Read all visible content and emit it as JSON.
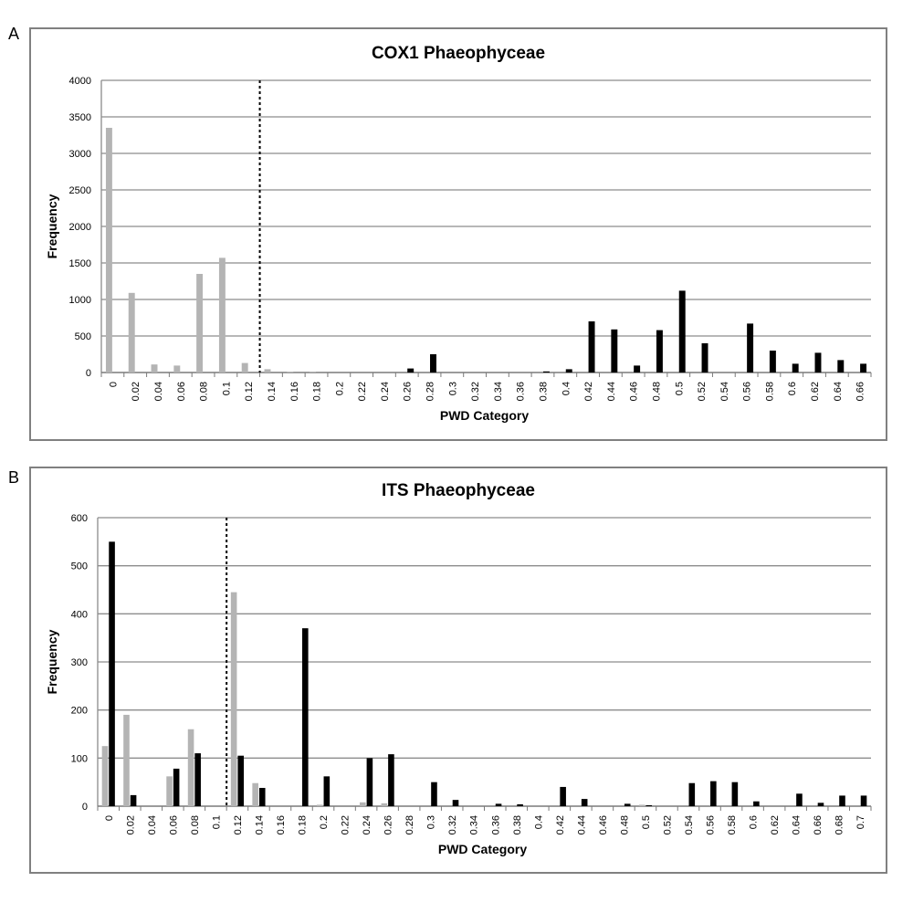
{
  "panels": [
    {
      "letter": "A"
    },
    {
      "letter": "B"
    }
  ],
  "colors": {
    "gray": "#b4b4b4",
    "black": "#000000",
    "grid": "#8c8c8c",
    "frame": "#808080"
  },
  "chart_data": [
    {
      "type": "bar",
      "title": "COX1 Phaeophyceae",
      "xlabel": "PWD Category",
      "ylabel": "Frequency",
      "ylim": [
        0,
        4000
      ],
      "yticks": [
        "0",
        "500",
        "1000",
        "1500",
        "2000",
        "2500",
        "3000",
        "3500",
        "4000"
      ],
      "grid": true,
      "threshold_line_after": "0.12",
      "categories": [
        "0",
        "0.02",
        "0.04",
        "0.06",
        "0.08",
        "0.1",
        "0.12",
        "0.14",
        "0.16",
        "0.18",
        "0.2",
        "0.22",
        "0.24",
        "0.26",
        "0.28",
        "0.3",
        "0.32",
        "0.34",
        "0.36",
        "0.38",
        "0.4",
        "0.42",
        "0.44",
        "0.46",
        "0.48",
        "0.5",
        "0.52",
        "0.54",
        "0.56",
        "0.58",
        "0.6",
        "0.62",
        "0.64",
        "0.66"
      ],
      "series": [
        {
          "color": "gray",
          "values": [
            3350,
            1090,
            110,
            95,
            1350,
            1570,
            130,
            45,
            10,
            5,
            0,
            0,
            0,
            0,
            0,
            0,
            0,
            0,
            0,
            0,
            0,
            0,
            0,
            0,
            0,
            0,
            0,
            0,
            0,
            0,
            0,
            0,
            0,
            0
          ]
        },
        {
          "color": "black",
          "values": [
            0,
            0,
            0,
            0,
            0,
            0,
            0,
            0,
            0,
            0,
            0,
            0,
            0,
            55,
            250,
            0,
            0,
            0,
            0,
            15,
            45,
            700,
            590,
            95,
            580,
            1120,
            400,
            0,
            670,
            300,
            120,
            270,
            170,
            120
          ]
        }
      ]
    },
    {
      "type": "bar",
      "title": "ITS Phaeophyceae",
      "xlabel": "PWD Category",
      "ylabel": "Frequency",
      "ylim": [
        0,
        600
      ],
      "yticks": [
        "0",
        "100",
        "200",
        "300",
        "400",
        "500",
        "600"
      ],
      "grid": true,
      "threshold_line_after": "0.1",
      "categories": [
        "0",
        "0.02",
        "0.04",
        "0.06",
        "0.08",
        "0.1",
        "0.12",
        "0.14",
        "0.16",
        "0.18",
        "0.2",
        "0.22",
        "0.24",
        "0.26",
        "0.28",
        "0.3",
        "0.32",
        "0.34",
        "0.36",
        "0.38",
        "0.4",
        "0.42",
        "0.44",
        "0.46",
        "0.48",
        "0.5",
        "0.52",
        "0.54",
        "0.56",
        "0.58",
        "0.6",
        "0.62",
        "0.64",
        "0.66",
        "0.68",
        "0.7"
      ],
      "series": [
        {
          "color": "gray",
          "values": [
            125,
            190,
            0,
            62,
            160,
            0,
            445,
            48,
            0,
            0,
            3,
            0,
            8,
            6,
            0,
            0,
            0,
            0,
            0,
            0,
            0,
            0,
            0,
            0,
            0,
            3,
            0,
            0,
            0,
            0,
            0,
            0,
            0,
            0,
            0,
            0
          ]
        },
        {
          "color": "black",
          "values": [
            550,
            23,
            0,
            78,
            110,
            0,
            105,
            38,
            0,
            370,
            62,
            0,
            100,
            108,
            0,
            50,
            13,
            0,
            5,
            4,
            0,
            40,
            15,
            0,
            5,
            2,
            0,
            48,
            52,
            50,
            10,
            0,
            26,
            7,
            22,
            22
          ]
        }
      ]
    }
  ]
}
